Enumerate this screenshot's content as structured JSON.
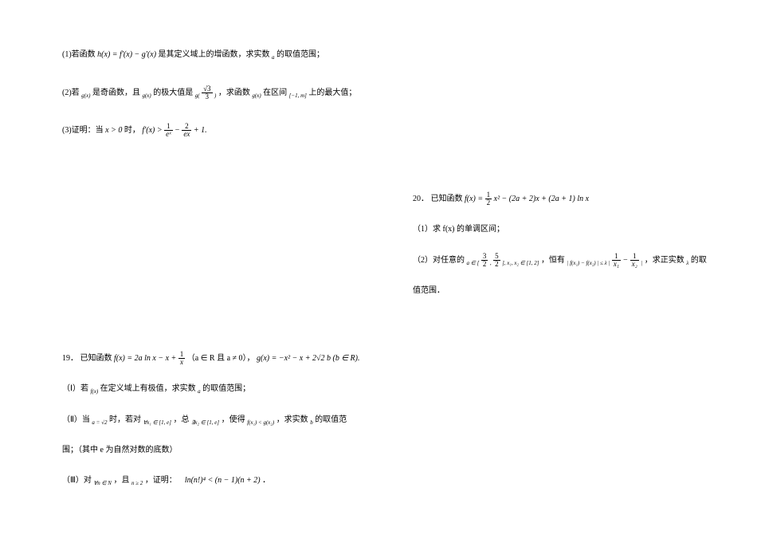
{
  "colors": {
    "background": "#ffffff",
    "text": "#000000"
  },
  "font": {
    "family_cn": "SimSun",
    "family_math": "Times New Roman",
    "size_body": 10,
    "size_sub": 7
  },
  "left_top": {
    "q1_prefix": "(1)若函数",
    "q1_formula": "h(x) = f'(x) − g'(x)",
    "q1_mid": "是其定义域上的增函数，求实数",
    "q1_var": "a",
    "q1_suffix": "的取值范围；",
    "q2_prefix": "(2)若",
    "q2_gx1": "g(x)",
    "q2_mid1": "是奇函数，且",
    "q2_gx2": "g(x)",
    "q2_mid2": "的极大值是",
    "q2_gfrac_left": "g(",
    "q2_frac_num": "√3",
    "q2_frac_den": "3",
    "q2_gfrac_right": ")",
    "q2_mid3": "，求函数",
    "q2_gx3": "g(x)",
    "q2_mid4": "在区间",
    "q2_interval": "[−1, m]",
    "q2_suffix": "上的最大值；",
    "q3_prefix": "(3)证明：当",
    "q3_cond": "x > 0",
    "q3_mid": "时，",
    "q3_formula_left": "f'(x) >",
    "q3_frac1_num": "1",
    "q3_frac1_den": "eˣ",
    "q3_minus": "−",
    "q3_frac2_num": "2",
    "q3_frac2_den": "ex",
    "q3_formula_right": "+ 1."
  },
  "left_bottom": {
    "num": "19．",
    "prefix": "已知函数",
    "fx_def_left": "f(x) = 2a ln x − x +",
    "fx_frac_num": "1",
    "fx_frac_den": "x",
    "fx_cond": "（a ∈ R 且 a ≠ 0），",
    "gx_def": "g(x) = −x² − x + 2√2 b",
    "gx_cond": "(b ∈ R).",
    "p1_prefix": "（Ⅰ）若",
    "p1_fx": "f(x)",
    "p1_mid": "在定义域上有极值，求实数",
    "p1_var": "a",
    "p1_suffix": "的取值范围；",
    "p2_prefix": "（Ⅱ）当",
    "p2_a": "a = √2",
    "p2_mid1": "时，若对",
    "p2_forall": "∀x₁ ∈ [1, e]",
    "p2_mid2": "，总",
    "p2_exists": "∃x₂ ∈ [1, e]",
    "p2_mid3": "，使得",
    "p2_ineq": "f(x₁) < g(x₂)",
    "p2_mid4": "，求实数",
    "p2_var": "b",
    "p2_suffix": "的取值范",
    "p2_line2": "围；（其中 e 为自然对数的底数）",
    "p3_prefix": "（Ⅲ）对",
    "p3_forall": "∀n ∈ N",
    "p3_mid1": "，且",
    "p3_cond": "n ≥ 2",
    "p3_mid2": "，证明：",
    "p3_formula": "ln(n!)⁴ < (n − 1)(n + 2)",
    "p3_suffix": "．"
  },
  "right": {
    "num": "20．",
    "prefix": "已知函数",
    "fx_left": "f(x) =",
    "fx_frac_num": "1",
    "fx_frac_den": "2",
    "fx_right": "x² − (2a + 2)x + (2a + 1) ln x",
    "p1": "（1）求 f(x) 的单调区间；",
    "p2_prefix": "（2）对任意的",
    "p2_a_in": "a ∈ [",
    "p2_frac1_num": "3",
    "p2_frac1_den": "2",
    "p2_comma1": ",",
    "p2_frac2_num": "5",
    "p2_frac2_den": "2",
    "p2_a_close": "], x₁, x₂ ∈ [1, 2]",
    "p2_mid": "，恒有",
    "p2_ineq_left": "| f(x₁) − f(x₂) | ≤ λ |",
    "p2_frac3_num": "1",
    "p2_frac3_den": "x₁",
    "p2_minus": "−",
    "p2_frac4_num": "1",
    "p2_frac4_den": "x₂",
    "p2_ineq_right": "|",
    "p2_mid2": "，求正实数",
    "p2_var": "λ",
    "p2_suffix": "的取",
    "p2_line2": "值范围．"
  }
}
